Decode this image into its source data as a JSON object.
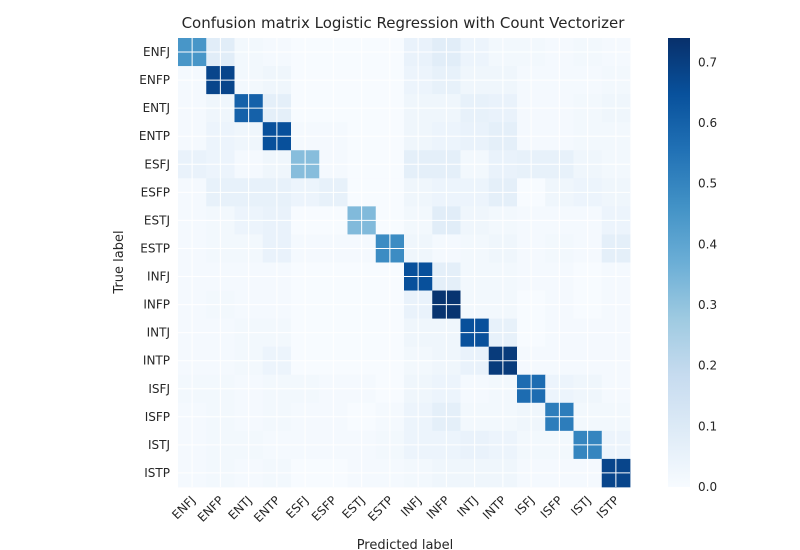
{
  "chart_data": {
    "type": "heatmap",
    "title": "Confusion matrix Logistic Regression with Count Vectorizer",
    "xlabel": "Predicted label",
    "ylabel": "True label",
    "colormap": "Blues",
    "grid": true,
    "labels": [
      "ENFJ",
      "ENFP",
      "ENTJ",
      "ENTP",
      "ESFJ",
      "ESFP",
      "ESTJ",
      "ESTP",
      "INFJ",
      "INFP",
      "INTJ",
      "INTP",
      "ISFJ",
      "ISFP",
      "ISTJ",
      "ISTP"
    ],
    "matrix": [
      [
        0.45,
        0.08,
        0.02,
        0.01,
        0.0,
        0.0,
        0.0,
        0.0,
        0.05,
        0.08,
        0.04,
        0.02,
        0.02,
        0.01,
        0.02,
        0.01
      ],
      [
        0.01,
        0.68,
        0.02,
        0.03,
        0.0,
        0.0,
        0.0,
        0.0,
        0.04,
        0.06,
        0.03,
        0.03,
        0.01,
        0.01,
        0.01,
        0.02
      ],
      [
        0.01,
        0.03,
        0.6,
        0.07,
        0.0,
        0.0,
        0.0,
        0.0,
        0.03,
        0.03,
        0.06,
        0.05,
        0.01,
        0.01,
        0.02,
        0.03
      ],
      [
        0.01,
        0.04,
        0.03,
        0.65,
        0.01,
        0.01,
        0.0,
        0.0,
        0.03,
        0.04,
        0.05,
        0.07,
        0.01,
        0.01,
        0.02,
        0.02
      ],
      [
        0.05,
        0.04,
        0.01,
        0.03,
        0.32,
        0.01,
        0.0,
        0.0,
        0.07,
        0.07,
        0.02,
        0.05,
        0.06,
        0.06,
        0.03,
        0.02
      ],
      [
        0.01,
        0.06,
        0.06,
        0.06,
        0.04,
        0.06,
        0.0,
        0.0,
        0.03,
        0.04,
        0.04,
        0.07,
        0.0,
        0.03,
        0.04,
        0.03
      ],
      [
        0.01,
        0.02,
        0.04,
        0.05,
        0.0,
        0.0,
        0.33,
        0.0,
        0.02,
        0.08,
        0.03,
        0.02,
        0.01,
        0.01,
        0.01,
        0.04
      ],
      [
        0.01,
        0.02,
        0.02,
        0.05,
        0.01,
        0.01,
        0.01,
        0.48,
        0.03,
        0.01,
        0.02,
        0.03,
        0.01,
        0.02,
        0.01,
        0.07
      ],
      [
        0.01,
        0.01,
        0.01,
        0.01,
        0.0,
        0.0,
        0.0,
        0.0,
        0.65,
        0.07,
        0.02,
        0.02,
        0.01,
        0.01,
        0.0,
        0.01
      ],
      [
        0.01,
        0.02,
        0.01,
        0.01,
        0.0,
        0.0,
        0.0,
        0.0,
        0.05,
        0.73,
        0.02,
        0.02,
        0.0,
        0.01,
        0.0,
        0.01
      ],
      [
        0.01,
        0.01,
        0.02,
        0.02,
        0.0,
        0.0,
        0.0,
        0.0,
        0.03,
        0.03,
        0.65,
        0.06,
        0.0,
        0.01,
        0.01,
        0.01
      ],
      [
        0.01,
        0.01,
        0.02,
        0.04,
        0.0,
        0.0,
        0.0,
        0.0,
        0.02,
        0.03,
        0.05,
        0.71,
        0.01,
        0.01,
        0.01,
        0.01
      ],
      [
        0.02,
        0.02,
        0.01,
        0.02,
        0.02,
        0.01,
        0.01,
        0.0,
        0.03,
        0.04,
        0.01,
        0.02,
        0.57,
        0.04,
        0.03,
        0.01
      ],
      [
        0.01,
        0.02,
        0.01,
        0.02,
        0.01,
        0.01,
        0.0,
        0.01,
        0.04,
        0.07,
        0.02,
        0.02,
        0.03,
        0.52,
        0.02,
        0.02
      ],
      [
        0.01,
        0.02,
        0.02,
        0.01,
        0.01,
        0.01,
        0.01,
        0.02,
        0.04,
        0.04,
        0.05,
        0.04,
        0.02,
        0.02,
        0.5,
        0.04
      ],
      [
        0.01,
        0.02,
        0.01,
        0.02,
        0.0,
        0.0,
        0.01,
        0.01,
        0.02,
        0.03,
        0.03,
        0.03,
        0.01,
        0.01,
        0.01,
        0.68
      ]
    ],
    "colorbar": {
      "range": [
        0.0,
        0.74
      ],
      "ticks": [
        "0.0",
        "0.1",
        "0.2",
        "0.3",
        "0.4",
        "0.5",
        "0.6",
        "0.7"
      ]
    }
  }
}
